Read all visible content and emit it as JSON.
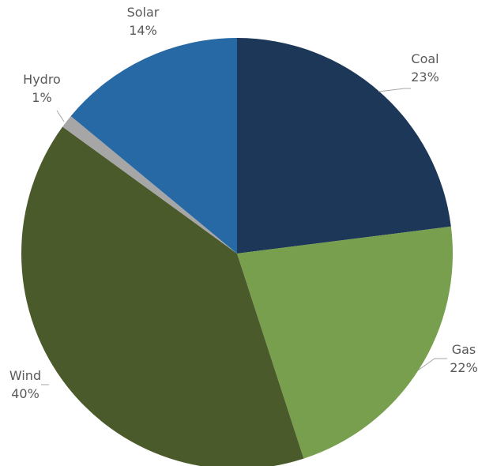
{
  "chart_data": {
    "type": "pie",
    "title": "",
    "start_angle_deg": 0,
    "direction": "clockwise",
    "slices": [
      {
        "label": "Coal",
        "value": 23,
        "value_label": "23%",
        "color": "#1c3758"
      },
      {
        "label": "Gas",
        "value": 22,
        "value_label": "22%",
        "color": "#789f4e"
      },
      {
        "label": "Wind",
        "value": 40,
        "value_label": "40%",
        "color": "#4b5a2b"
      },
      {
        "label": "Hydro",
        "value": 1,
        "value_label": "1%",
        "color": "#a6a6a6"
      },
      {
        "label": "Solar",
        "value": 14,
        "value_label": "14%",
        "color": "#2769a5"
      }
    ],
    "data_labels": "outside-with-leader-lines",
    "legend": "none"
  }
}
